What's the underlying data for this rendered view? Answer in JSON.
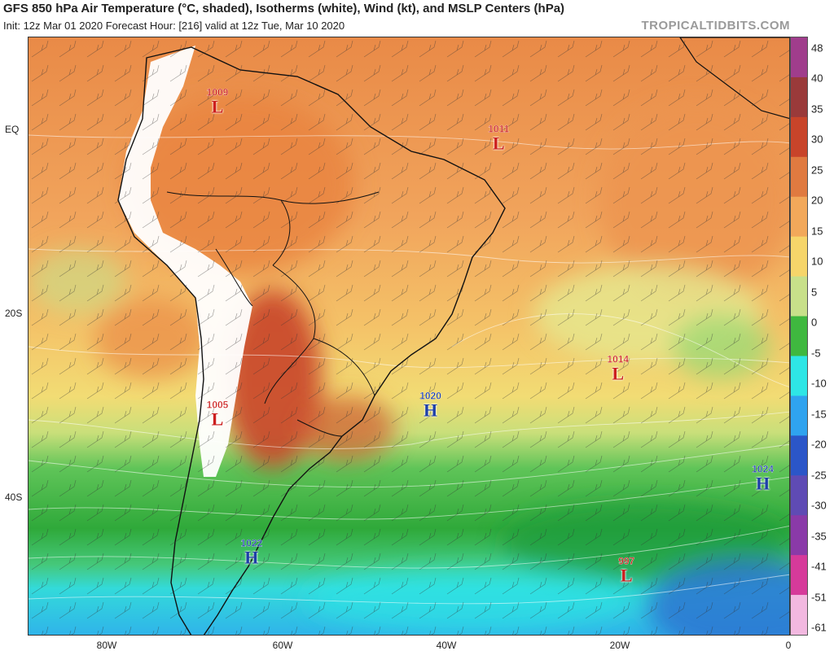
{
  "header": {
    "title": "GFS 850 hPa Air Temperature (°C, shaded), Isotherms (white), Wind (kt), and MSLP Centers (hPa)",
    "subtitle": "Init: 12z Mar 01 2020   Forecast Hour: [216]   valid at 12z Tue, Mar 10 2020",
    "brand": "TROPICALTIDBITS.COM"
  },
  "axes": {
    "lat_labels": [
      "EQ",
      "20S",
      "40S"
    ],
    "lon_labels": [
      "80W",
      "60W",
      "40W",
      "20W",
      "0"
    ]
  },
  "colorbar": {
    "labels": [
      "48",
      "40",
      "35",
      "30",
      "25",
      "20",
      "15",
      "10",
      "5",
      "0",
      "-5",
      "-10",
      "-15",
      "-20",
      "-25",
      "-30",
      "-35",
      "-41",
      "-51",
      "-61"
    ],
    "colors": [
      "#a03d8c",
      "#9a3a3a",
      "#c8442a",
      "#e07a40",
      "#f2a85a",
      "#f6d56a",
      "#c8e08a",
      "#3fb83f",
      "#2ee6e6",
      "#2fa3ef",
      "#2b56c8",
      "#5f4bb4",
      "#8a3aa8",
      "#d63a9a",
      "#f2b8e0"
    ]
  },
  "pressure_centers": [
    {
      "type": "L",
      "value": "1009",
      "lat": 3,
      "lon": -67
    },
    {
      "type": "L",
      "value": "1011",
      "lat": -1,
      "lon": -34
    },
    {
      "type": "L",
      "value": "1014",
      "lat": -26,
      "lon": -20
    },
    {
      "type": "L",
      "value": "1005",
      "lat": -31,
      "lon": -67
    },
    {
      "type": "H",
      "value": "1020",
      "lat": -30,
      "lon": -42
    },
    {
      "type": "H",
      "value": "1024",
      "lat": -38,
      "lon": -3
    },
    {
      "type": "H",
      "value": "1022",
      "lat": -46,
      "lon": -63
    },
    {
      "type": "L",
      "value": "997",
      "lat": -48,
      "lon": -19
    }
  ]
}
